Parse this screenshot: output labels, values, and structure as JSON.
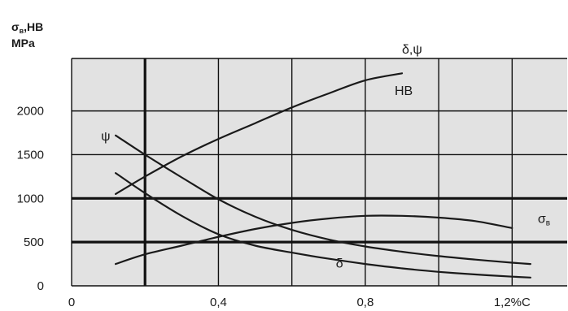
{
  "chart_data": {
    "type": "line",
    "ylabel_line1": "σ",
    "ylabel_sub": "в",
    "ylabel_line1_rest": ",HB",
    "ylabel_line2": "MPa",
    "y2label_line1": "δ,ψ",
    "xlim": [
      0,
      1.35
    ],
    "ylim": [
      0,
      2600
    ],
    "x_ticks": [
      {
        "value": 0,
        "label": "0"
      },
      {
        "value": 0.4,
        "label": "0,4"
      },
      {
        "value": 0.8,
        "label": "0,8"
      },
      {
        "value": 1.2,
        "label": "1,2%C"
      }
    ],
    "y_ticks": [
      {
        "value": 0,
        "label": "0"
      },
      {
        "value": 500,
        "label": "500"
      },
      {
        "value": 1000,
        "label": "1000"
      },
      {
        "value": 1500,
        "label": "1500"
      },
      {
        "value": 2000,
        "label": "2000"
      }
    ],
    "grid_thin_x": [
      0.6,
      1.0
    ],
    "grid_thick_x": [
      0.2
    ],
    "grid_thin_y": [
      1500,
      2000
    ],
    "grid_thick_y": [
      500,
      1000
    ],
    "series": [
      {
        "name": "HB",
        "label_at": [
          0.88,
          2180
        ],
        "x": [
          0.12,
          0.2,
          0.3,
          0.4,
          0.5,
          0.6,
          0.7,
          0.8,
          0.9
        ],
        "values": [
          1050,
          1250,
          1480,
          1680,
          1860,
          2040,
          2200,
          2350,
          2430
        ]
      },
      {
        "name": "σ",
        "sub": "в",
        "label_at": [
          1.27,
          720
        ],
        "x": [
          0.12,
          0.2,
          0.3,
          0.4,
          0.5,
          0.6,
          0.7,
          0.8,
          0.9,
          1.0,
          1.1,
          1.2
        ],
        "values": [
          250,
          360,
          460,
          560,
          650,
          720,
          770,
          800,
          800,
          780,
          740,
          660
        ]
      },
      {
        "name": "ψ",
        "label_at": [
          0.08,
          1660
        ],
        "x": [
          0.12,
          0.2,
          0.3,
          0.4,
          0.5,
          0.6,
          0.7,
          0.8,
          0.9,
          1.0,
          1.1,
          1.2,
          1.25
        ],
        "values": [
          1720,
          1500,
          1240,
          990,
          790,
          640,
          530,
          450,
          390,
          340,
          300,
          265,
          250
        ]
      },
      {
        "name": "δ",
        "label_at": [
          0.72,
          210
        ],
        "x": [
          0.12,
          0.2,
          0.3,
          0.4,
          0.5,
          0.6,
          0.7,
          0.8,
          0.9,
          1.0,
          1.1,
          1.2,
          1.25
        ],
        "values": [
          1290,
          1060,
          800,
          590,
          460,
          380,
          310,
          250,
          200,
          160,
          130,
          105,
          95
        ]
      }
    ]
  }
}
